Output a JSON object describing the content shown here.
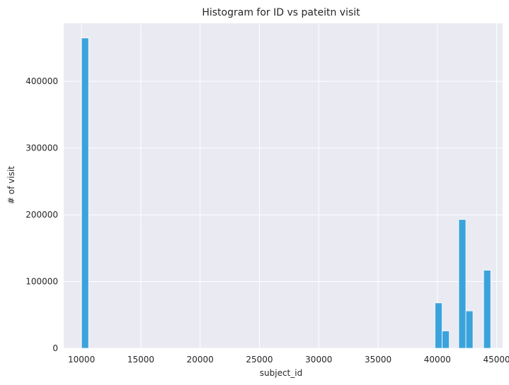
{
  "chart_data": {
    "type": "bar",
    "title": "Histogram for ID vs pateitn visit",
    "xlabel": "subject_id",
    "ylabel": "# of visit",
    "xlim": [
      8500,
      45500
    ],
    "ylim": [
      0,
      487000
    ],
    "xticks": [
      10000,
      15000,
      20000,
      25000,
      30000,
      35000,
      40000,
      45000
    ],
    "yticks": [
      0,
      100000,
      200000,
      300000,
      400000
    ],
    "bin_width": 600,
    "bins": [
      {
        "x0": 10000,
        "x1": 10600,
        "value": 465000
      },
      {
        "x0": 39800,
        "x1": 40400,
        "value": 68000
      },
      {
        "x0": 40400,
        "x1": 41000,
        "value": 26000
      },
      {
        "x0": 41800,
        "x1": 42400,
        "value": 193000
      },
      {
        "x0": 42400,
        "x1": 43000,
        "value": 56000
      },
      {
        "x0": 43900,
        "x1": 44500,
        "value": 117000
      }
    ],
    "bar_color": "#3ba3dc",
    "background": "#eaeaf2",
    "grid": true
  }
}
